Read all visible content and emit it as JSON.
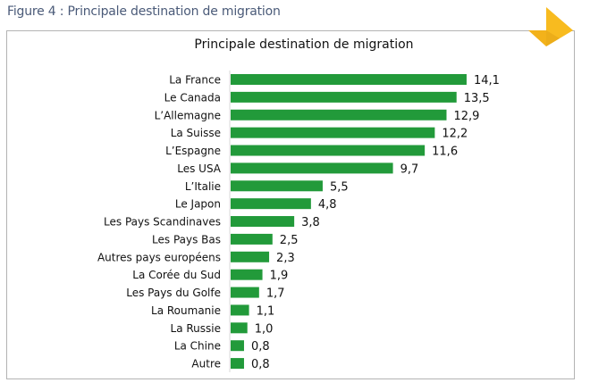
{
  "figure": {
    "caption": "Figure 4 : Principale destination de migration"
  },
  "colors": {
    "bar": "#229a3a",
    "caption": "#4a5a78",
    "frame": "#b3b3b3",
    "accent": "#f8bb1f"
  },
  "chart_data": {
    "type": "bar",
    "orientation": "horizontal",
    "title": "Principale destination de migration",
    "xlabel": "",
    "ylabel": "",
    "grid": false,
    "legend": "none",
    "xlim": [
      0,
      15
    ],
    "categories": [
      "La France",
      "Le Canada",
      "L’Allemagne",
      "La Suisse",
      "L’Espagne",
      "Les USA",
      "L’Italie",
      "Le Japon",
      "Les Pays Scandinaves",
      "Les Pays Bas",
      "Autres pays européens",
      "La Corée du Sud",
      "Les Pays du Golfe",
      "La Roumanie",
      "La Russie",
      "La Chine",
      "Autre"
    ],
    "values": [
      14.1,
      13.5,
      12.9,
      12.2,
      11.6,
      9.7,
      5.5,
      4.8,
      3.8,
      2.5,
      2.3,
      1.9,
      1.7,
      1.1,
      1.0,
      0.8,
      0.8
    ],
    "value_labels": [
      "14,1",
      "13,5",
      "12,9",
      "12,2",
      "11,6",
      "9,7",
      "5,5",
      "4,8",
      "3,8",
      "2,5",
      "2,3",
      "1,9",
      "1,7",
      "1,1",
      "1,0",
      "0,8",
      "0,8"
    ]
  }
}
